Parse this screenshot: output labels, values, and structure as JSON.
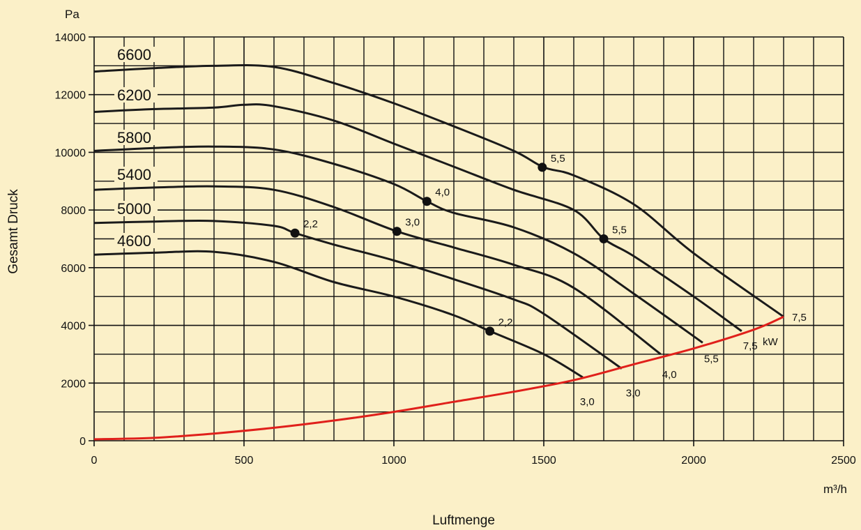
{
  "chart_data": {
    "type": "line",
    "xlabel": "Luftmenge",
    "ylabel": "Gesamt Druck",
    "x_unit": "m³/h",
    "y_unit": "Pa",
    "xlim": [
      0,
      2500
    ],
    "ylim": [
      0,
      14000
    ],
    "x_ticks": [
      "0",
      "500",
      "1000",
      "1500",
      "2000",
      "2500"
    ],
    "y_ticks": [
      "0",
      "2000",
      "4000",
      "6000",
      "8000",
      "10000",
      "12000",
      "14000"
    ],
    "grid": true,
    "series": [
      {
        "name": "6600",
        "points": [
          [
            0,
            12800
          ],
          [
            200,
            12920
          ],
          [
            400,
            13000
          ],
          [
            600,
            12960
          ],
          [
            800,
            12400
          ],
          [
            1000,
            11700
          ],
          [
            1200,
            10900
          ],
          [
            1400,
            10050
          ],
          [
            1500,
            9480
          ],
          [
            1600,
            9200
          ],
          [
            1800,
            8200
          ],
          [
            2000,
            6500
          ],
          [
            2300,
            4300
          ]
        ],
        "markers": [
          {
            "x": 1495,
            "y": 9480,
            "label": "5,5"
          }
        ],
        "end_label": "7,5"
      },
      {
        "name": "6200",
        "points": [
          [
            0,
            11400
          ],
          [
            200,
            11500
          ],
          [
            400,
            11550
          ],
          [
            500,
            11650
          ],
          [
            600,
            11600
          ],
          [
            800,
            11100
          ],
          [
            1000,
            10300
          ],
          [
            1200,
            9500
          ],
          [
            1400,
            8700
          ],
          [
            1600,
            8000
          ],
          [
            1700,
            7000
          ],
          [
            1800,
            6400
          ],
          [
            2000,
            5000
          ],
          [
            2160,
            3800
          ]
        ],
        "markers": [
          {
            "x": 1700,
            "y": 7000,
            "label": "5,5"
          }
        ],
        "end_label": "7,5"
      },
      {
        "name": "5800",
        "points": [
          [
            0,
            10050
          ],
          [
            200,
            10150
          ],
          [
            400,
            10200
          ],
          [
            600,
            10100
          ],
          [
            800,
            9600
          ],
          [
            1000,
            8900
          ],
          [
            1110,
            8300
          ],
          [
            1200,
            7900
          ],
          [
            1400,
            7400
          ],
          [
            1600,
            6500
          ],
          [
            1800,
            5100
          ],
          [
            2030,
            3400
          ]
        ],
        "markers": [
          {
            "x": 1110,
            "y": 8300,
            "label": "4,0"
          }
        ],
        "end_label": "5,5"
      },
      {
        "name": "5400",
        "points": [
          [
            0,
            8700
          ],
          [
            200,
            8780
          ],
          [
            400,
            8820
          ],
          [
            600,
            8700
          ],
          [
            800,
            8100
          ],
          [
            1010,
            7260
          ],
          [
            1200,
            6700
          ],
          [
            1400,
            6100
          ],
          [
            1600,
            5300
          ],
          [
            1890,
            3000
          ]
        ],
        "markers": [
          {
            "x": 1010,
            "y": 7260,
            "label": "3,0"
          }
        ],
        "end_label": "4,0"
      },
      {
        "name": "5000",
        "points": [
          [
            0,
            7550
          ],
          [
            200,
            7600
          ],
          [
            400,
            7620
          ],
          [
            600,
            7450
          ],
          [
            670,
            7200
          ],
          [
            800,
            6800
          ],
          [
            1000,
            6250
          ],
          [
            1200,
            5600
          ],
          [
            1400,
            4900
          ],
          [
            1500,
            4400
          ],
          [
            1760,
            2500
          ]
        ],
        "markers": [
          {
            "x": 670,
            "y": 7200,
            "label": "2,2"
          }
        ],
        "end_label": "3,0"
      },
      {
        "name": "4600",
        "points": [
          [
            0,
            6450
          ],
          [
            200,
            6520
          ],
          [
            400,
            6550
          ],
          [
            600,
            6200
          ],
          [
            800,
            5500
          ],
          [
            1000,
            5000
          ],
          [
            1200,
            4350
          ],
          [
            1320,
            3800
          ],
          [
            1500,
            3000
          ],
          [
            1630,
            2200
          ]
        ],
        "markers": [
          {
            "x": 1320,
            "y": 3800,
            "label": "2,2"
          }
        ],
        "end_label": "3,0"
      }
    ],
    "limit_curve": {
      "color": "#e0201b",
      "points": [
        [
          0,
          50
        ],
        [
          200,
          100
        ],
        [
          400,
          250
        ],
        [
          600,
          450
        ],
        [
          800,
          700
        ],
        [
          1000,
          1000
        ],
        [
          1200,
          1350
        ],
        [
          1400,
          1700
        ],
        [
          1600,
          2100
        ],
        [
          1800,
          2650
        ],
        [
          2000,
          3200
        ],
        [
          2200,
          3850
        ],
        [
          2300,
          4300
        ]
      ]
    },
    "kw_unit_label": "kW",
    "colors": {
      "background": "#fbf0c8",
      "curve": "#1a1a1a",
      "limit": "#e0201b",
      "grid": "#111111"
    }
  }
}
